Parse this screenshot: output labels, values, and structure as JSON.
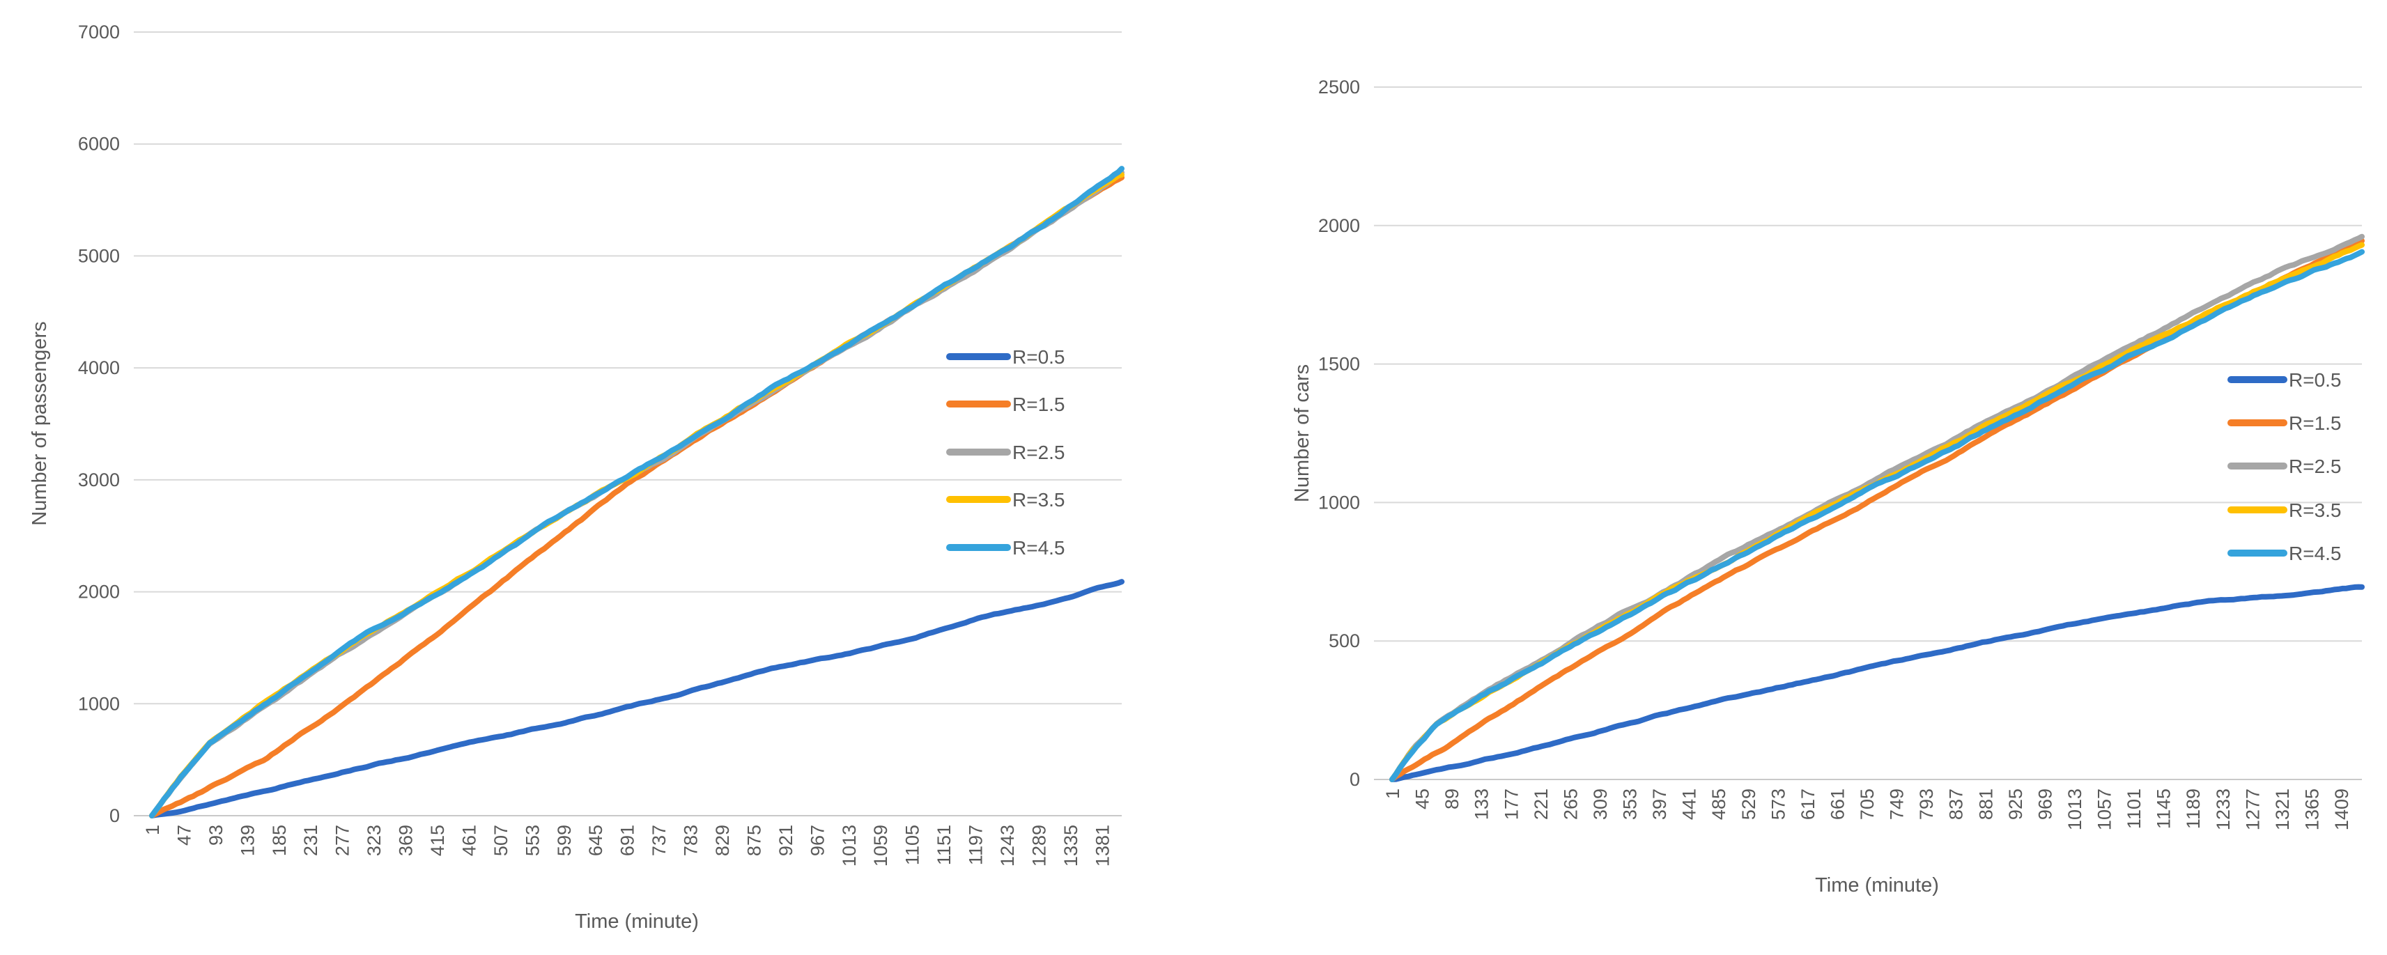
{
  "page": {
    "background": "#FFFFFF",
    "text_color": "#595959",
    "grid_color": "#D9D9D9",
    "axis_line_color": "#C9C9C9"
  },
  "chart_data": [
    {
      "type": "line",
      "title": "",
      "xlabel": "Time (minute)",
      "ylabel": "Number of passengers",
      "x_max": 1410,
      "x_ticks": [
        1,
        47,
        93,
        139,
        185,
        231,
        277,
        323,
        369,
        415,
        461,
        507,
        553,
        599,
        645,
        691,
        737,
        783,
        829,
        875,
        921,
        967,
        1013,
        1059,
        1105,
        1151,
        1197,
        1243,
        1289,
        1335,
        1381
      ],
      "ylim": [
        0,
        7000
      ],
      "y_ticks": [
        0,
        1000,
        2000,
        3000,
        4000,
        5000,
        6000,
        7000
      ],
      "grid": true,
      "legend_position": "inside-right",
      "series": [
        {
          "name": "R=0.5",
          "color": "#2E6BC6",
          "jitter": 12,
          "anchors": [
            [
              1,
              0
            ],
            [
              60,
              70
            ],
            [
              120,
              160
            ],
            [
              200,
              280
            ],
            [
              300,
              430
            ],
            [
              400,
              560
            ],
            [
              500,
              700
            ],
            [
              600,
              830
            ],
            [
              700,
              980
            ],
            [
              800,
              1140
            ],
            [
              900,
              1310
            ],
            [
              1000,
              1430
            ],
            [
              1100,
              1570
            ],
            [
              1200,
              1760
            ],
            [
              1300,
              1900
            ],
            [
              1410,
              2090
            ]
          ]
        },
        {
          "name": "R=1.5",
          "color": "#F57E27",
          "jitter": 20,
          "anchors": [
            [
              1,
              0
            ],
            [
              80,
              230
            ],
            [
              168,
              510
            ],
            [
              300,
              1090
            ],
            [
              450,
              1790
            ],
            [
              600,
              2520
            ],
            [
              690,
              2950
            ],
            [
              900,
              3780
            ],
            [
              1100,
              4520
            ],
            [
              1300,
              5280
            ],
            [
              1410,
              5700
            ]
          ]
        },
        {
          "name": "R=2.5",
          "color": "#A6A6A6",
          "jitter": 22,
          "anchors": [
            [
              1,
              0
            ],
            [
              45,
              350
            ],
            [
              85,
              640
            ],
            [
              165,
              990
            ],
            [
              300,
              1545
            ],
            [
              450,
              2105
            ],
            [
              600,
              2690
            ],
            [
              750,
              3215
            ],
            [
              900,
              3800
            ],
            [
              1050,
              4330
            ],
            [
              1200,
              4890
            ],
            [
              1300,
              5275
            ],
            [
              1410,
              5745
            ]
          ]
        },
        {
          "name": "R=3.5",
          "color": "#FFC000",
          "jitter": 22,
          "anchors": [
            [
              1,
              0
            ],
            [
              45,
              365
            ],
            [
              85,
              660
            ],
            [
              165,
              1010
            ],
            [
              300,
              1570
            ],
            [
              450,
              2130
            ],
            [
              600,
              2710
            ],
            [
              750,
              3240
            ],
            [
              900,
              3815
            ],
            [
              1050,
              4350
            ],
            [
              1200,
              4905
            ],
            [
              1300,
              5295
            ],
            [
              1410,
              5725
            ]
          ]
        },
        {
          "name": "R=4.5",
          "color": "#35A3DC",
          "jitter": 22,
          "anchors": [
            [
              1,
              0
            ],
            [
              45,
              360
            ],
            [
              85,
              650
            ],
            [
              165,
              1000
            ],
            [
              300,
              1560
            ],
            [
              450,
              2120
            ],
            [
              600,
              2700
            ],
            [
              750,
              3230
            ],
            [
              900,
              3810
            ],
            [
              1050,
              4340
            ],
            [
              1200,
              4900
            ],
            [
              1300,
              5290
            ],
            [
              1410,
              5780
            ]
          ]
        }
      ]
    },
    {
      "type": "line",
      "title": "",
      "xlabel": "Time (minute)",
      "ylabel": "Number of cars",
      "x_max": 1440,
      "x_ticks": [
        1,
        45,
        89,
        133,
        177,
        221,
        265,
        309,
        353,
        397,
        441,
        485,
        529,
        573,
        617,
        661,
        705,
        749,
        793,
        837,
        881,
        925,
        969,
        1013,
        1057,
        1101,
        1145,
        1189,
        1233,
        1277,
        1321,
        1365,
        1409
      ],
      "ylim": [
        0,
        2500
      ],
      "y_ticks": [
        0,
        500,
        1000,
        1500,
        2000,
        2500
      ],
      "grid": true,
      "legend_position": "inside-right",
      "series": [
        {
          "name": "R=0.5",
          "color": "#2E6BC6",
          "jitter": 5,
          "anchors": [
            [
              1,
              0
            ],
            [
              100,
              50
            ],
            [
              200,
              105
            ],
            [
              300,
              170
            ],
            [
              400,
              235
            ],
            [
              500,
              290
            ],
            [
              600,
              345
            ],
            [
              700,
              400
            ],
            [
              800,
              455
            ],
            [
              900,
              505
            ],
            [
              1000,
              555
            ],
            [
              1100,
              600
            ],
            [
              1200,
              640
            ],
            [
              1320,
              665
            ],
            [
              1440,
              695
            ]
          ]
        },
        {
          "name": "R=1.5",
          "color": "#F57E27",
          "jitter": 8,
          "anchors": [
            [
              1,
              0
            ],
            [
              84,
              120
            ],
            [
              200,
              300
            ],
            [
              300,
              450
            ],
            [
              450,
              670
            ],
            [
              620,
              890
            ],
            [
              800,
              1130
            ],
            [
              1000,
              1390
            ],
            [
              1200,
              1655
            ],
            [
              1320,
              1805
            ],
            [
              1440,
              1945
            ]
          ]
        },
        {
          "name": "R=2.5",
          "color": "#A6A6A6",
          "jitter": 9,
          "anchors": [
            [
              1,
              0
            ],
            [
              30,
              105
            ],
            [
              65,
              200
            ],
            [
              150,
              330
            ],
            [
              300,
              540
            ],
            [
              450,
              740
            ],
            [
              600,
              935
            ],
            [
              750,
              1125
            ],
            [
              900,
              1315
            ],
            [
              1050,
              1505
            ],
            [
              1200,
              1695
            ],
            [
              1320,
              1835
            ],
            [
              1440,
              1960
            ]
          ]
        },
        {
          "name": "R=3.5",
          "color": "#FFC000",
          "jitter": 9,
          "anchors": [
            [
              1,
              0
            ],
            [
              30,
              100
            ],
            [
              65,
              195
            ],
            [
              150,
              325
            ],
            [
              300,
              530
            ],
            [
              450,
              728
            ],
            [
              600,
              920
            ],
            [
              750,
              1108
            ],
            [
              900,
              1298
            ],
            [
              1050,
              1487
            ],
            [
              1200,
              1672
            ],
            [
              1320,
              1808
            ],
            [
              1440,
              1930
            ]
          ]
        },
        {
          "name": "R=4.5",
          "color": "#35A3DC",
          "jitter": 9,
          "anchors": [
            [
              1,
              0
            ],
            [
              30,
              100
            ],
            [
              65,
              195
            ],
            [
              150,
              320
            ],
            [
              300,
              525
            ],
            [
              450,
              720
            ],
            [
              600,
              910
            ],
            [
              750,
              1095
            ],
            [
              900,
              1285
            ],
            [
              1050,
              1470
            ],
            [
              1200,
              1655
            ],
            [
              1320,
              1790
            ],
            [
              1440,
              1905
            ]
          ]
        }
      ]
    }
  ]
}
